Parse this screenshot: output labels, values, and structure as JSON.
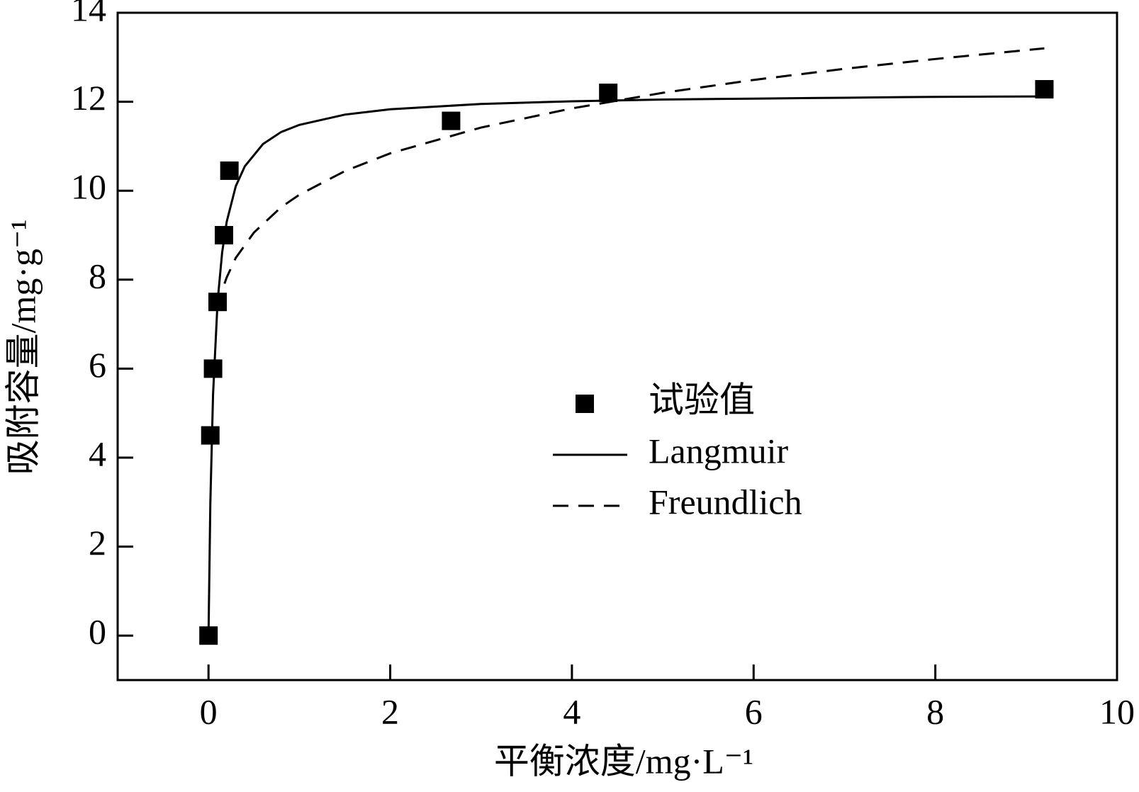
{
  "chart_data": {
    "type": "scatter",
    "xlabel": "平衡浓度/mg·L⁻¹",
    "ylabel": "吸附容量/mg·g⁻¹",
    "xlim": [
      -1,
      10
    ],
    "ylim": [
      -1,
      14
    ],
    "xticks": [
      0,
      2,
      4,
      6,
      8,
      10
    ],
    "yticks": [
      0,
      2,
      4,
      6,
      8,
      10,
      12,
      14
    ],
    "legend": "center right",
    "series": [
      {
        "name": "试验值",
        "style": "markers",
        "color": "#000000",
        "x": [
          0,
          0.02,
          0.05,
          0.1,
          0.17,
          0.23,
          2.67,
          4.4,
          9.2
        ],
        "values": [
          0,
          4.5,
          6.0,
          7.5,
          9.0,
          10.45,
          11.57,
          12.2,
          12.28
        ]
      },
      {
        "name": "Langmuir",
        "style": "solid",
        "color": "#000000",
        "x": [
          0,
          0.02,
          0.05,
          0.1,
          0.15,
          0.2,
          0.3,
          0.4,
          0.6,
          0.8,
          1,
          1.5,
          2,
          3,
          4,
          5,
          6,
          7,
          8,
          9.2
        ],
        "values": [
          0,
          2.96,
          5.42,
          7.51,
          8.61,
          9.3,
          10.1,
          10.55,
          11.05,
          11.32,
          11.48,
          11.71,
          11.83,
          11.95,
          12.01,
          12.05,
          12.07,
          12.09,
          12.11,
          12.12
        ]
      },
      {
        "name": "Freundlich",
        "style": "dashed",
        "color": "#000000",
        "x": [
          0.1,
          0.15,
          0.2,
          0.3,
          0.5,
          0.8,
          1,
          1.5,
          2,
          3,
          4,
          5,
          6,
          7,
          8,
          9.2
        ],
        "values": [
          7.36,
          7.76,
          8.05,
          8.49,
          9.06,
          9.63,
          9.91,
          10.44,
          10.84,
          11.42,
          11.85,
          12.2,
          12.49,
          12.74,
          12.96,
          13.2
        ]
      }
    ]
  }
}
